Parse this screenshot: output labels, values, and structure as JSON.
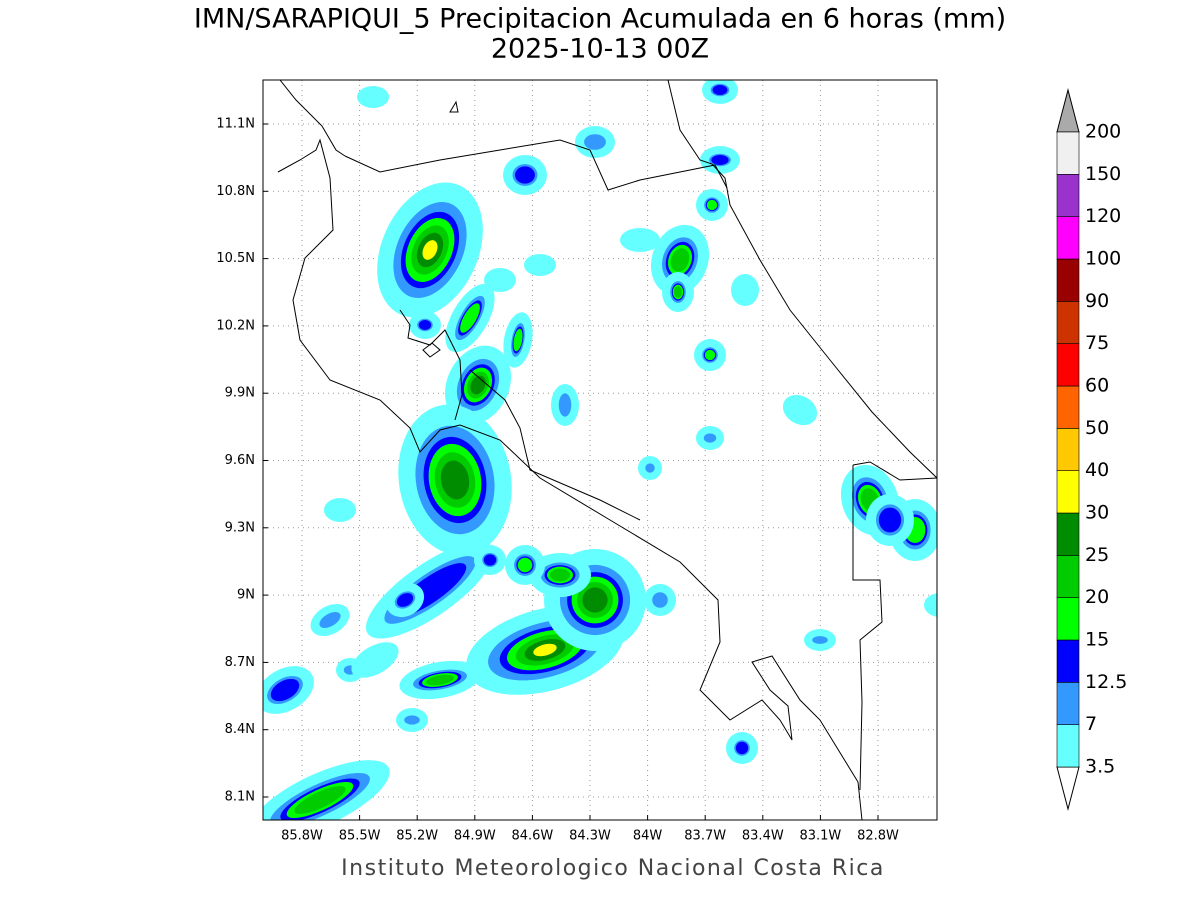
{
  "title": "IMN/SARAPIQUI_5 Precipitacion Acumulada en 6 horas (mm)",
  "subtitle": "2025-10-13 00Z",
  "map": {
    "lon_ticks": [
      "85.8W",
      "85.5W",
      "85.2W",
      "84.9W",
      "84.6W",
      "84.3W",
      "84W",
      "83.7W",
      "83.4W",
      "83.1W",
      "82.8W"
    ],
    "lat_ticks": [
      "11.1N",
      "10.8N",
      "10.5N",
      "10.2N",
      "9.9N",
      "9.6N",
      "9.3N",
      "9N",
      "8.7N",
      "8.4N",
      "8.1N"
    ]
  },
  "colorbar": {
    "levels": [
      3.5,
      7,
      12.5,
      15,
      20,
      25,
      30,
      40,
      50,
      60,
      75,
      90,
      100,
      120,
      150,
      200
    ],
    "colors": [
      "#ffffff",
      "#66ffff",
      "#3399ff",
      "#0000ff",
      "#00ff00",
      "#00cc00",
      "#008c00",
      "#ffff00",
      "#ffc800",
      "#ff6400",
      "#ff0000",
      "#cc3300",
      "#990000",
      "#ff00ff",
      "#9933cc",
      "#f0f0f0",
      "#aaaaaa"
    ]
  },
  "footer": "Instituto Meteorologico Nacional Costa Rica"
}
